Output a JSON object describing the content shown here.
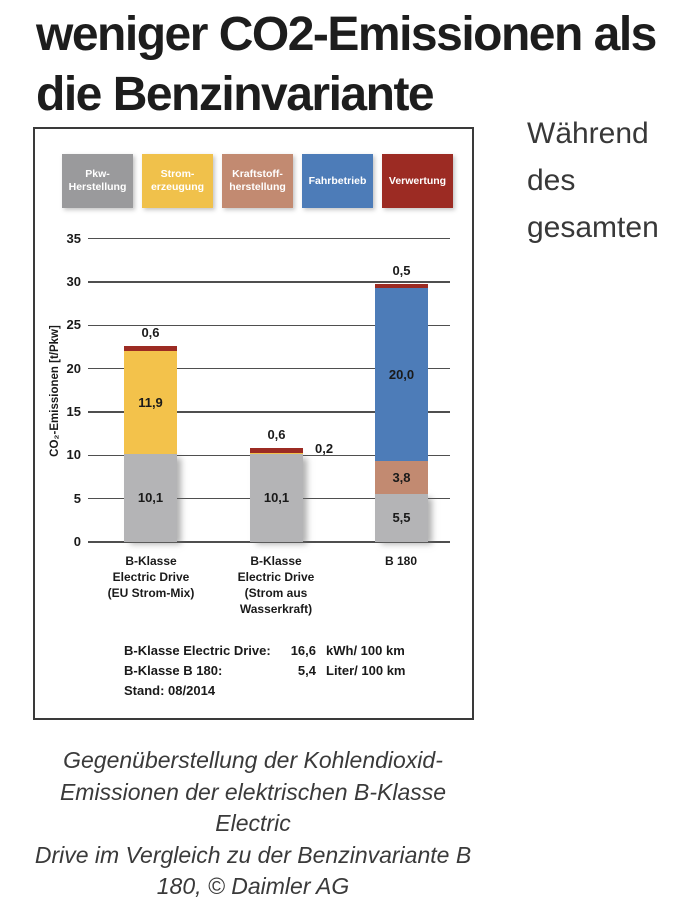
{
  "page": {
    "headline": {
      "line1": "weniger CO2-Emissionen als",
      "line2": "die Benzinvariante"
    },
    "intro_text": {
      "line1": "Während",
      "line2": "des",
      "line3": "gesamten"
    },
    "caption": {
      "line1": "Gegenüberstellung der Kohlendioxid-",
      "line2": "Emissionen der elektrischen B-Klasse Electric",
      "line3": "Drive im Vergleich zu der Benzinvariante B",
      "line4": "180, © Daimler AG"
    }
  },
  "chart_data": {
    "type": "bar",
    "stacked": true,
    "title": "",
    "ylabel": "CO₂-Emissionen [t/Pkw]",
    "xlabel": "",
    "ylim": [
      0,
      35
    ],
    "ytick_step": 5,
    "yticks": [
      35,
      30,
      25,
      20,
      15,
      10,
      5,
      0
    ],
    "grid": true,
    "legend_position": "top",
    "legend": [
      {
        "label_lines": [
          "Pkw-",
          "Herstellung"
        ],
        "color": "#9a9a9c"
      },
      {
        "label_lines": [
          "Strom-",
          "erzeugung"
        ],
        "color": "#f0c14b"
      },
      {
        "label_lines": [
          "Kraftstoff-",
          "herstellung"
        ],
        "color": "#c28a71"
      },
      {
        "label_lines": [
          "Fahrbetrieb"
        ],
        "color": "#4d7cb8"
      },
      {
        "label_lines": [
          "Verwertung"
        ],
        "color": "#9c2b23"
      }
    ],
    "categories": [
      {
        "label_lines": [
          "B-Klasse",
          "Electric Drive",
          "(EU Strom-Mix)"
        ]
      },
      {
        "label_lines": [
          "B-Klasse",
          "Electric Drive",
          "(Strom aus",
          "Wasserkraft)"
        ]
      },
      {
        "label_lines": [
          "B 180"
        ]
      }
    ],
    "bars": [
      {
        "total": 22.6,
        "segments": [
          {
            "series": "Pkw-Herstellung",
            "value": 10.1,
            "label": "10,1",
            "label_pos": "inside",
            "color": "#b4b4b6"
          },
          {
            "series": "Stromerzeugung",
            "value": 11.9,
            "label": "11,9",
            "label_pos": "inside",
            "color": "#f3c24b"
          },
          {
            "series": "Verwertung",
            "value": 0.6,
            "label": "0,6",
            "label_pos": "above",
            "color": "#9c2b23"
          }
        ]
      },
      {
        "total": 10.9,
        "segments": [
          {
            "series": "Pkw-Herstellung",
            "value": 10.1,
            "label": "10,1",
            "label_pos": "inside",
            "color": "#b4b4b6"
          },
          {
            "series": "Stromerzeugung",
            "value": 0.2,
            "label": "0,2",
            "label_pos": "right",
            "color": "#f3c24b"
          },
          {
            "series": "Verwertung",
            "value": 0.6,
            "label": "0,6",
            "label_pos": "above",
            "color": "#9c2b23"
          }
        ]
      },
      {
        "total": 29.8,
        "segments": [
          {
            "series": "Pkw-Herstellung",
            "value": 5.5,
            "label": "5,5",
            "label_pos": "inside",
            "color": "#b4b4b6"
          },
          {
            "series": "Kraftstoffherstellung",
            "value": 3.8,
            "label": "3,8",
            "label_pos": "inside",
            "color": "#c28a71"
          },
          {
            "series": "Fahrbetrieb",
            "value": 20.0,
            "label": "20,0",
            "label_pos": "inside",
            "color": "#4d7cb8"
          },
          {
            "series": "Verwertung",
            "value": 0.5,
            "label": "0,5",
            "label_pos": "above",
            "color": "#9c2b23"
          }
        ]
      }
    ],
    "footnotes": [
      {
        "label": "B-Klasse Electric Drive:",
        "value": "16,6",
        "unit": "kWh/ 100 km"
      },
      {
        "label": "B-Klasse B 180:",
        "value": "5,4",
        "unit": "Liter/ 100 km"
      },
      {
        "label": "Stand: 08/2014",
        "value": "",
        "unit": ""
      }
    ]
  }
}
